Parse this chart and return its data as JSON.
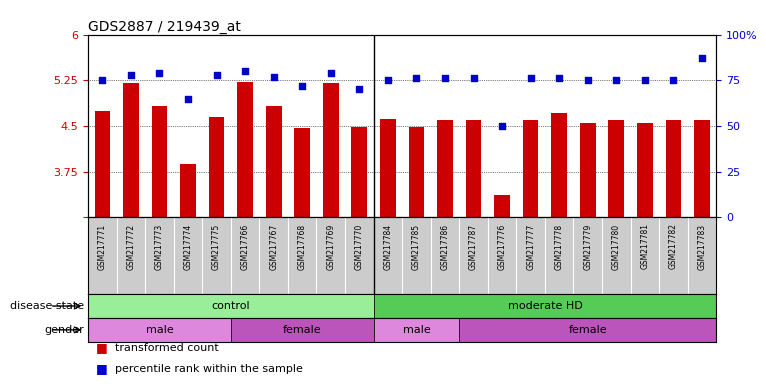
{
  "title": "GDS2887 / 219439_at",
  "samples": [
    "GSM217771",
    "GSM217772",
    "GSM217773",
    "GSM217774",
    "GSM217775",
    "GSM217766",
    "GSM217767",
    "GSM217768",
    "GSM217769",
    "GSM217770",
    "GSM217784",
    "GSM217785",
    "GSM217786",
    "GSM217787",
    "GSM217776",
    "GSM217777",
    "GSM217778",
    "GSM217779",
    "GSM217780",
    "GSM217781",
    "GSM217782",
    "GSM217783"
  ],
  "bar_values": [
    4.75,
    5.2,
    4.82,
    3.87,
    4.65,
    5.22,
    4.82,
    4.47,
    5.2,
    4.48,
    4.62,
    4.48,
    4.6,
    4.6,
    3.37,
    4.6,
    4.72,
    4.55,
    4.6,
    4.55,
    4.6,
    4.6
  ],
  "dot_values": [
    75,
    78,
    79,
    65,
    78,
    80,
    77,
    72,
    79,
    70,
    75,
    76,
    76,
    76,
    50,
    76,
    76,
    75,
    75,
    75,
    75,
    87
  ],
  "bar_color": "#CC0000",
  "dot_color": "#0000CC",
  "ymin": 3,
  "ymax": 6,
  "yticks": [
    3,
    3.75,
    4.5,
    5.25,
    6
  ],
  "y2min": 0,
  "y2max": 100,
  "y2ticks": [
    0,
    25,
    50,
    75,
    100
  ],
  "disease_state_groups": [
    {
      "label": "control",
      "start": 0,
      "end": 10,
      "color": "#99EE99"
    },
    {
      "label": "moderate HD",
      "start": 10,
      "end": 22,
      "color": "#55CC55"
    }
  ],
  "gender_groups": [
    {
      "label": "male",
      "start": 0,
      "end": 5,
      "color": "#DD88DD"
    },
    {
      "label": "female",
      "start": 5,
      "end": 10,
      "color": "#BB55BB"
    },
    {
      "label": "male",
      "start": 10,
      "end": 13,
      "color": "#DD88DD"
    },
    {
      "label": "female",
      "start": 13,
      "end": 22,
      "color": "#BB55BB"
    }
  ],
  "legend_items": [
    {
      "label": "transformed count",
      "color": "#CC0000"
    },
    {
      "label": "percentile rank within the sample",
      "color": "#0000CC"
    }
  ],
  "disease_label": "disease state",
  "gender_label": "gender",
  "xtick_bg": "#CCCCCC",
  "separator_col": 10
}
